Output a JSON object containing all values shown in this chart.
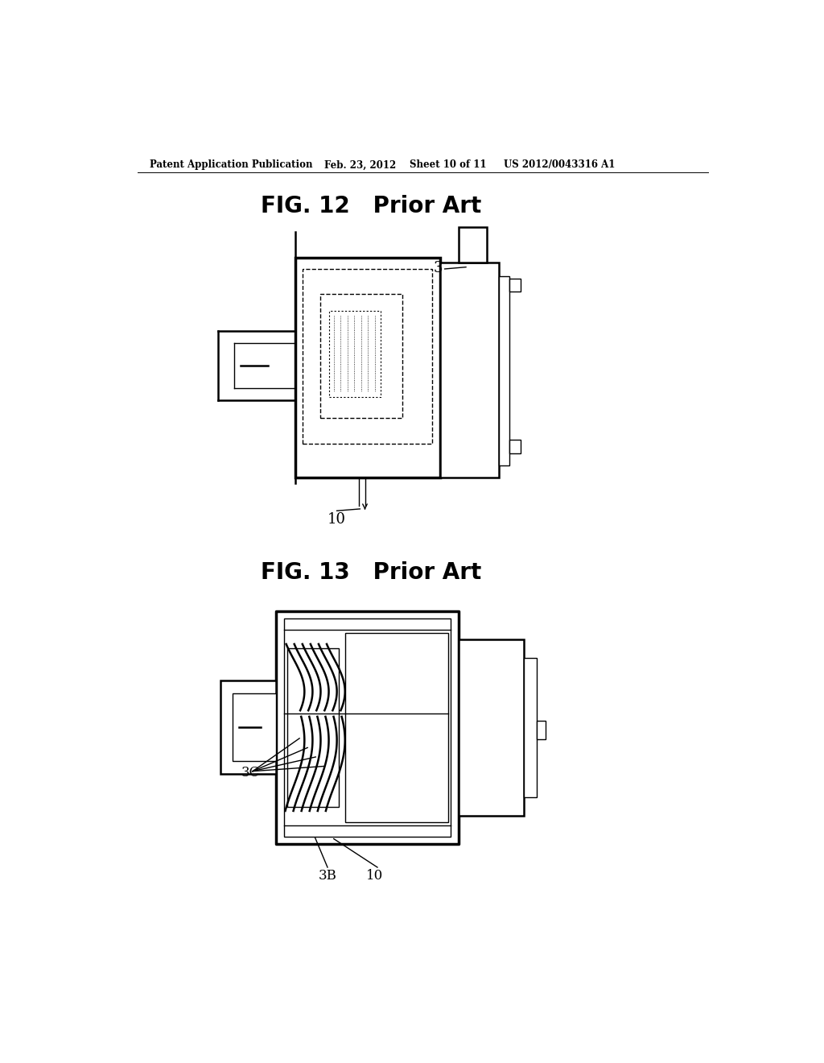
{
  "bg_color": "#ffffff",
  "header_text": "Patent Application Publication",
  "header_date": "Feb. 23, 2012",
  "header_sheet": "Sheet 10 of 11",
  "header_patent": "US 2012/0043316 A1",
  "fig12_title": "FIG. 12   Prior Art",
  "fig13_title": "FIG. 13   Prior Art",
  "label_3": "3",
  "label_10_fig12": "10",
  "label_3B": "3B",
  "label_10_fig13": "10",
  "label_3C": "3C",
  "line_color": "#000000",
  "lw_thin": 1.0,
  "lw_med": 1.8,
  "lw_thick": 2.5
}
